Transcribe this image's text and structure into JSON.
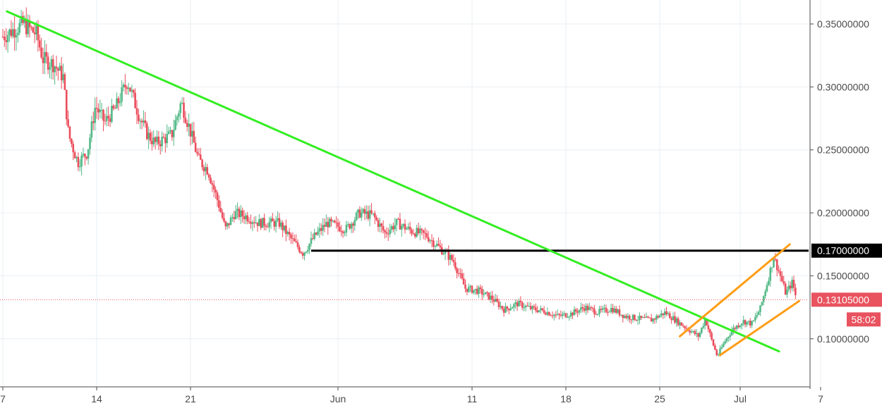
{
  "chart_data": {
    "type": "candlestick",
    "title": "",
    "xlabel": "",
    "ylabel": "",
    "ylim": [
      0.075,
      0.362
    ],
    "grid": true,
    "y_ticks": [
      {
        "value": 0.35,
        "label": "0.35000000"
      },
      {
        "value": 0.3,
        "label": "0.30000000"
      },
      {
        "value": 0.25,
        "label": "0.25000000"
      },
      {
        "value": 0.2,
        "label": "0.20000000"
      },
      {
        "value": 0.15,
        "label": "0.15000000"
      },
      {
        "value": 0.1,
        "label": "0.10000000"
      }
    ],
    "x_ticks": [
      {
        "label": "7",
        "day": -1
      },
      {
        "label": "14",
        "day": 6
      },
      {
        "label": "21",
        "day": 13
      },
      {
        "label": "Jun",
        "day": 24
      },
      {
        "label": "11",
        "day": 34
      },
      {
        "label": "18",
        "day": 41
      },
      {
        "label": "25",
        "day": 48
      },
      {
        "label": "Jul",
        "day": 54
      },
      {
        "label": "7",
        "day": 60
      }
    ],
    "price_path": [
      [
        -1.0,
        0.34
      ],
      [
        0.5,
        0.35
      ],
      [
        1.5,
        0.342
      ],
      [
        2.0,
        0.322
      ],
      [
        2.8,
        0.318
      ],
      [
        3.5,
        0.308
      ],
      [
        3.9,
        0.262
      ],
      [
        4.6,
        0.24
      ],
      [
        5.3,
        0.248
      ],
      [
        5.9,
        0.285
      ],
      [
        6.6,
        0.272
      ],
      [
        7.4,
        0.283
      ],
      [
        8.3,
        0.305
      ],
      [
        9.2,
        0.276
      ],
      [
        9.8,
        0.262
      ],
      [
        10.4,
        0.255
      ],
      [
        11.6,
        0.262
      ],
      [
        12.3,
        0.288
      ],
      [
        12.9,
        0.268
      ],
      [
        13.6,
        0.242
      ],
      [
        14.3,
        0.234
      ],
      [
        15.1,
        0.207
      ],
      [
        15.6,
        0.187
      ],
      [
        16.3,
        0.2
      ],
      [
        17.2,
        0.197
      ],
      [
        18.1,
        0.192
      ],
      [
        19.6,
        0.192
      ],
      [
        20.6,
        0.178
      ],
      [
        21.4,
        0.168
      ],
      [
        22.3,
        0.182
      ],
      [
        23.2,
        0.192
      ],
      [
        24.6,
        0.187
      ],
      [
        25.6,
        0.2
      ],
      [
        26.6,
        0.198
      ],
      [
        27.5,
        0.184
      ],
      [
        28.4,
        0.192
      ],
      [
        29.4,
        0.186
      ],
      [
        30.6,
        0.182
      ],
      [
        31.6,
        0.172
      ],
      [
        32.6,
        0.162
      ],
      [
        33.5,
        0.14
      ],
      [
        34.5,
        0.138
      ],
      [
        35.5,
        0.132
      ],
      [
        36.4,
        0.123
      ],
      [
        37.4,
        0.128
      ],
      [
        38.4,
        0.124
      ],
      [
        39.4,
        0.122
      ],
      [
        40.4,
        0.118
      ],
      [
        41.4,
        0.12
      ],
      [
        42.4,
        0.125
      ],
      [
        43.4,
        0.121
      ],
      [
        44.4,
        0.124
      ],
      [
        45.4,
        0.118
      ],
      [
        46.4,
        0.116
      ],
      [
        47.4,
        0.115
      ],
      [
        48.4,
        0.121
      ],
      [
        49.4,
        0.113
      ],
      [
        50.2,
        0.107
      ],
      [
        50.9,
        0.102
      ],
      [
        51.4,
        0.116
      ],
      [
        51.9,
        0.098
      ],
      [
        52.3,
        0.086
      ],
      [
        52.8,
        0.097
      ],
      [
        53.4,
        0.107
      ],
      [
        54.2,
        0.114
      ],
      [
        54.9,
        0.112
      ],
      [
        55.5,
        0.124
      ],
      [
        56.1,
        0.148
      ],
      [
        56.5,
        0.165
      ],
      [
        57.0,
        0.15
      ],
      [
        57.4,
        0.136
      ],
      [
        57.9,
        0.145
      ],
      [
        58.2,
        0.131
      ]
    ],
    "horizontal_levels": [
      {
        "value": 0.17,
        "label": "0.17000000",
        "color": "#000000",
        "start_day": 22.0
      }
    ],
    "current_price": {
      "value": 0.13105,
      "label": "0.13105000",
      "color": "#e8535f"
    },
    "countdown": "58:02",
    "trendlines": [
      {
        "name": "descending",
        "color": "#33ee22",
        "points": [
          [
            -0.7,
            0.36
          ],
          [
            56.9,
            0.09
          ]
        ]
      },
      {
        "name": "channel-upper",
        "color": "#ff9d15",
        "points": [
          [
            49.5,
            0.102
          ],
          [
            57.7,
            0.175
          ]
        ]
      },
      {
        "name": "channel-lower",
        "color": "#ff9d15",
        "points": [
          [
            52.5,
            0.087
          ],
          [
            58.4,
            0.13
          ]
        ]
      }
    ],
    "colors": {
      "up": "#53b987",
      "down": "#eb4d5c",
      "grid": "#e9eff3",
      "axis_text": "#4a4a4a"
    }
  }
}
